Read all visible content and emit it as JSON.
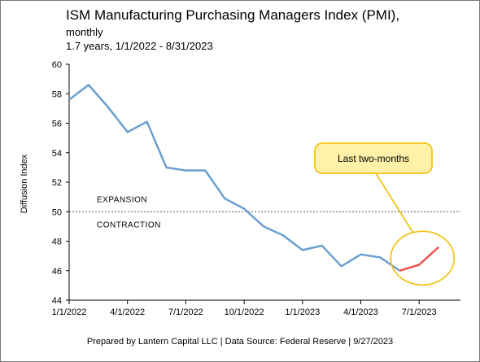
{
  "header": {
    "title": "ISM Manufacturing Purchasing Managers Index (PMI),",
    "subtitle": "monthly",
    "range": "1.7 years, 1/1/2022 - 8/31/2023"
  },
  "footer": {
    "text": "Prepared by Lantern Capital LLC | Data Source: Federal Reserve | 9/27/2023"
  },
  "colors": {
    "main_line": "#6a9fd0",
    "highlight_line": "#f0504a",
    "callout_fill": "#fff2a8",
    "callout_border": "#f0c419"
  },
  "chart_data": {
    "type": "line",
    "title": "ISM Manufacturing Purchasing Managers Index (PMI),",
    "subtitle": "monthly",
    "ylabel": "Diffusion Index",
    "xlabel": "",
    "ylim": [
      44,
      60
    ],
    "yticks": [
      "44",
      "46",
      "48",
      "50",
      "52",
      "54",
      "56",
      "58",
      "60"
    ],
    "xticks": [
      "1/1/2022",
      "4/1/2022",
      "7/1/2022",
      "10/1/2022",
      "1/1/2023",
      "4/1/2023",
      "7/1/2023"
    ],
    "x": [
      "1/1/2022",
      "2/1/2022",
      "3/1/2022",
      "4/1/2022",
      "5/1/2022",
      "6/1/2022",
      "7/1/2022",
      "8/1/2022",
      "9/1/2022",
      "10/1/2022",
      "11/1/2022",
      "12/1/2022",
      "1/1/2023",
      "2/1/2023",
      "3/1/2023",
      "4/1/2023",
      "5/1/2023",
      "6/1/2023",
      "7/1/2023",
      "8/1/2023"
    ],
    "values": [
      57.6,
      58.6,
      57.1,
      55.4,
      56.1,
      53.0,
      52.8,
      52.8,
      50.9,
      50.2,
      49.0,
      48.4,
      47.4,
      47.7,
      46.3,
      47.1,
      46.9,
      46.0,
      46.4,
      47.6
    ],
    "highlight_from_index": 17,
    "reference_line": {
      "value": 50,
      "style": "dotted"
    },
    "zone_labels": {
      "above": "EXPANSION",
      "below": "CONTRACTION"
    },
    "annotation": {
      "text": "Last two-months"
    },
    "grid": false
  }
}
